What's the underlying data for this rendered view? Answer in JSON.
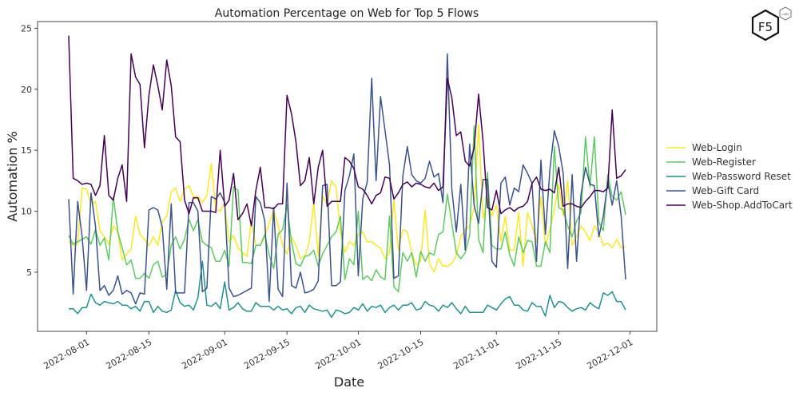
{
  "logo": {
    "text": "F5",
    "sub": "LABS"
  },
  "chart_data": {
    "type": "line",
    "title": "Automation Percentage on Web for Top 5 Flows",
    "xlabel": "Date",
    "ylabel": "Automation %",
    "x_start": "2022-07-28",
    "x_step_days": 1,
    "xlim": [
      "2022-07-21",
      "2022-12-07"
    ],
    "ylim": [
      0.15,
      25.55
    ],
    "yticks": [
      5,
      10,
      15,
      20,
      25
    ],
    "xticks": [
      "2022-08-01",
      "2022-08-15",
      "2022-09-01",
      "2022-09-15",
      "2022-10-01",
      "2022-10-15",
      "2022-11-01",
      "2022-11-15",
      "2022-12-01"
    ],
    "grid": false,
    "legend_position": "center-right outside",
    "series": [
      {
        "name": "Web-Login",
        "color": "#fde725",
        "values": [
          7.5,
          7.2,
          7.3,
          11.9,
          11.8,
          10.6,
          10.8,
          8.4,
          7.9,
          7.3,
          8.8,
          8.3,
          6.0,
          6.5,
          6.9,
          9.6,
          8.1,
          7.7,
          7.2,
          7.9,
          7.2,
          9.1,
          9.6,
          11.6,
          11.9,
          10.8,
          11.8,
          12.1,
          11.2,
          11.2,
          10.7,
          11.3,
          13.9,
          10.2,
          10.0,
          10.7,
          7.5,
          8.0,
          7.0,
          6.6,
          6.3,
          9.2,
          7.2,
          7.2,
          7.9,
          9.0,
          10.1,
          8.8,
          7.2,
          6.5,
          7.9,
          7.2,
          6.1,
          6.3,
          7.5,
          10.7,
          6.3,
          11.2,
          10.6,
          12.5,
          12.0,
          8.3,
          6.6,
          7.5,
          7.2,
          8.1,
          8.3,
          7.5,
          7.5,
          7.2,
          7.0,
          6.1,
          6.6,
          10.9,
          6.8,
          8.5,
          8.3,
          6.6,
          5.6,
          5.9,
          10.1,
          5.7,
          5.0,
          6.1,
          5.5,
          5.5,
          5.7,
          6.4,
          7.9,
          8.5,
          8.8,
          10.3,
          17.1,
          9.4,
          11.0,
          9.6,
          10.5,
          7.5,
          9.6,
          6.8,
          6.8,
          9.9,
          5.5,
          9.9,
          8.8,
          7.5,
          11.2,
          7.2,
          8.5,
          10.1,
          12.2,
          9.6,
          12.5,
          7.2,
          7.9,
          8.8,
          8.3,
          7.6,
          8.8,
          8.3,
          7.2,
          7.4,
          7.0,
          7.7,
          7.0,
          7.1
        ]
      },
      {
        "name": "Web-Register",
        "color": "#5ec962",
        "values": [
          8.0,
          7.3,
          7.5,
          7.7,
          7.9,
          7.3,
          8.5,
          7.2,
          7.8,
          6.0,
          11.2,
          8.3,
          7.0,
          5.6,
          6.0,
          4.5,
          4.5,
          4.9,
          4.5,
          5.6,
          5.9,
          4.6,
          4.8,
          7.2,
          7.9,
          6.9,
          7.7,
          9.3,
          8.4,
          9.3,
          7.5,
          7.2,
          7.0,
          5.9,
          5.9,
          6.8,
          5.5,
          12.0,
          11.7,
          5.8,
          5.8,
          5.7,
          7.2,
          7.2,
          8.1,
          6.4,
          5.3,
          8.1,
          8.5,
          10.5,
          7.5,
          5.7,
          5.5,
          6.3,
          6.4,
          6.8,
          5.5,
          6.5,
          7.2,
          7.9,
          8.3,
          9.6,
          4.4,
          6.1,
          5.6,
          10.0,
          4.4,
          4.7,
          4.3,
          5.2,
          4.6,
          4.4,
          9.6,
          3.8,
          3.4,
          6.6,
          5.9,
          6.6,
          4.6,
          6.7,
          5.9,
          6.6,
          6.4,
          8.1,
          8.3,
          11.4,
          9.0,
          6.6,
          6.1,
          6.6,
          8.0,
          17.0,
          7.7,
          6.6,
          13.2,
          7.2,
          6.9,
          6.9,
          8.3,
          6.4,
          5.5,
          7.9,
          6.6,
          7.6,
          7.5,
          5.5,
          5.5,
          7.5,
          6.6,
          15.3,
          10.3,
          10.1,
          8.8,
          7.9,
          9.2,
          9.9,
          16.1,
          12.0,
          16.1,
          9.1,
          8.4,
          13.0,
          11.2,
          10.9,
          11.6,
          9.7
        ]
      },
      {
        "name": "Web-Password Reset",
        "color": "#21918c",
        "values": [
          2.0,
          2.0,
          1.6,
          2.1,
          2.1,
          3.2,
          2.5,
          2.3,
          2.6,
          2.5,
          2.4,
          2.6,
          2.3,
          2.3,
          2.0,
          2.2,
          1.8,
          2.6,
          2.6,
          1.7,
          2.2,
          1.8,
          1.7,
          1.9,
          3.5,
          2.5,
          2.2,
          2.3,
          1.9,
          2.9,
          5.9,
          2.3,
          2.2,
          2.5,
          2.0,
          4.2,
          1.9,
          2.1,
          2.5,
          2.0,
          1.8,
          1.8,
          2.5,
          2.2,
          2.2,
          2.2,
          1.9,
          2.2,
          1.9,
          2.0,
          1.6,
          2.1,
          2.2,
          1.7,
          2.3,
          2.0,
          1.9,
          1.8,
          1.9,
          1.3,
          1.9,
          1.8,
          1.6,
          1.7,
          2.1,
          1.9,
          2.4,
          1.8,
          2.2,
          2.1,
          2.3,
          1.7,
          2.1,
          2.3,
          1.9,
          2.3,
          2.3,
          2.5,
          1.9,
          2.0,
          2.6,
          2.3,
          2.2,
          1.8,
          2.3,
          2.1,
          2.5,
          2.0,
          1.6,
          2.2,
          1.7,
          1.7,
          1.7,
          1.7,
          2.3,
          2.1,
          1.9,
          2.4,
          2.8,
          3.0,
          2.3,
          2.3,
          1.9,
          1.8,
          2.5,
          2.2,
          2.2,
          1.4,
          3.1,
          2.1,
          2.6,
          2.5,
          2.1,
          1.8,
          2.0,
          2.1,
          1.9,
          2.5,
          2.2,
          2.0,
          3.3,
          3.1,
          3.4,
          2.6,
          2.6,
          1.9
        ]
      },
      {
        "name": "Web-Gift Card",
        "color": "#3b528b",
        "values": [
          11.0,
          3.2,
          10.8,
          7.9,
          3.5,
          11.5,
          8.8,
          3.5,
          3.9,
          3.1,
          3.5,
          4.7,
          3.2,
          3.5,
          3.3,
          2.4,
          3.3,
          3.2,
          10.1,
          10.3,
          10.1,
          8.7,
          3.6,
          10.6,
          3.3,
          3.3,
          3.3,
          10.7,
          10.7,
          10.0,
          3.4,
          3.7,
          11.2,
          11.0,
          11.5,
          10.7,
          3.7,
          3.0,
          3.1,
          3.3,
          3.5,
          3.7,
          11.2,
          10.7,
          9.2,
          2.6,
          10.3,
          3.6,
          3.0,
          12.3,
          3.9,
          3.7,
          5.0,
          3.3,
          3.4,
          3.6,
          4.3,
          12.1,
          12.2,
          3.9,
          3.9,
          4.2,
          11.7,
          12.9,
          14.7,
          4.7,
          11.0,
          12.4,
          20.9,
          12.5,
          19.4,
          16.6,
          13.8,
          4.5,
          4.7,
          12.9,
          15.3,
          13.0,
          12.5,
          12.3,
          12.7,
          14.1,
          12.8,
          13.1,
          10.7,
          22.9,
          11.8,
          8.3,
          12.2,
          6.8,
          15.5,
          10.5,
          9.0,
          12.6,
          12.6,
          5.9,
          5.4,
          12.3,
          12.8,
          10.5,
          11.9,
          11.6,
          13.8,
          13.1,
          12.3,
          5.9,
          14.2,
          8.1,
          13.4,
          16.6,
          15.3,
          13.1,
          5.3,
          13.0,
          5.9,
          11.4,
          13.6,
          12.2,
          12.1,
          7.9,
          9.6,
          12.4,
          10.5,
          12.5,
          9.6,
          4.4
        ]
      },
      {
        "name": "Web-Shop.AddToCart",
        "color": "#440154",
        "values": [
          24.4,
          12.7,
          12.5,
          12.2,
          12.3,
          12.2,
          11.3,
          12.1,
          16.2,
          11.3,
          10.9,
          12.7,
          13.8,
          10.8,
          22.9,
          21.0,
          20.4,
          15.2,
          19.5,
          22.0,
          20.3,
          18.3,
          22.4,
          20.3,
          16.1,
          15.7,
          10.9,
          9.8,
          11.1,
          11.1,
          10.0,
          10.0,
          10.0,
          9.9,
          15.0,
          10.4,
          10.9,
          13.1,
          9.3,
          9.8,
          10.6,
          8.8,
          11.7,
          13.6,
          10.3,
          10.3,
          10.2,
          10.6,
          10.6,
          19.5,
          18.0,
          15.7,
          12.1,
          12.5,
          14.4,
          10.6,
          13.6,
          15.0,
          10.4,
          10.8,
          10.8,
          10.8,
          14.4,
          14.1,
          13.5,
          12.0,
          11.8,
          11.3,
          10.6,
          11.3,
          11.5,
          12.8,
          12.7,
          11.0,
          11.5,
          12.2,
          12.4,
          12.0,
          12.3,
          12.2,
          12.0,
          11.9,
          12.3,
          11.7,
          12.0,
          20.9,
          19.3,
          16.2,
          16.5,
          14.1,
          13.7,
          15.2,
          19.6,
          15.7,
          10.3,
          10.1,
          11.7,
          9.8,
          10.1,
          10.3,
          10.0,
          10.3,
          10.4,
          10.8,
          12.3,
          12.8,
          11.8,
          11.7,
          11.8,
          11.5,
          13.6,
          10.4,
          10.6,
          10.6,
          10.4,
          10.3,
          10.8,
          11.2,
          11.7,
          11.7,
          11.6,
          11.9,
          18.3,
          12.7,
          12.9,
          13.4
        ]
      }
    ]
  }
}
